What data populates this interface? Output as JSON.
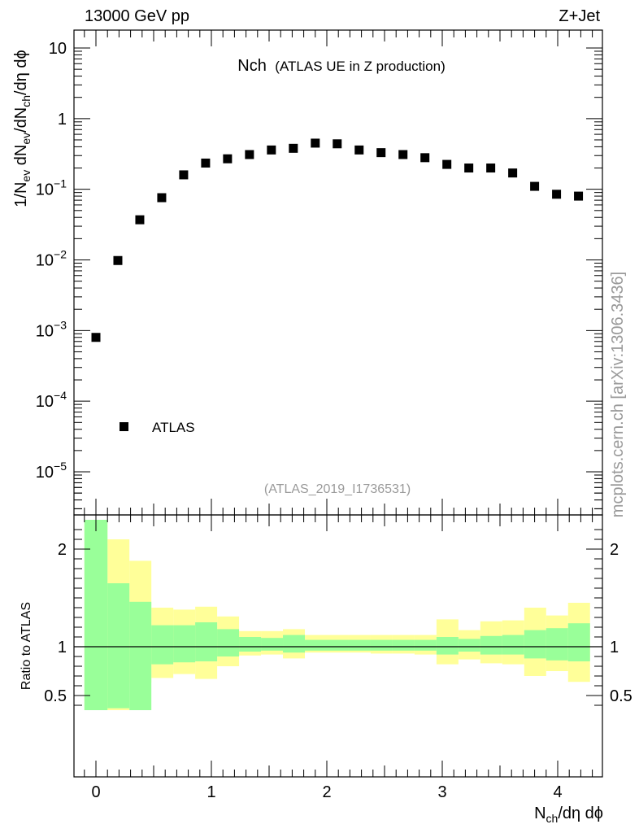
{
  "header": {
    "left": "13000 GeV pp",
    "right": "Z+Jet"
  },
  "side_text": "mcplots.cern.ch [arXiv:1306.3436]",
  "chart_data": [
    {
      "type": "scatter",
      "title_main": "Nch",
      "title_sub": "(ATLAS UE in Z production)",
      "analysis_id": "(ATLAS_2019_I1736531)",
      "ylabel": "1/N_ev dN_ev/dN_ch/dη dϕ",
      "yscale": "log",
      "ylim": [
        3e-06,
        20
      ],
      "xlim": [
        -0.2,
        4.38
      ],
      "ytick_labels": [
        "10",
        "1",
        "10−1",
        "10−2",
        "10−3",
        "10−4",
        "10−5"
      ],
      "legend": {
        "label": "ATLAS",
        "placement": "bottom-left"
      },
      "series": [
        {
          "name": "ATLAS",
          "marker": "square",
          "color": "#000000",
          "x": [
            0.0,
            0.19,
            0.38,
            0.57,
            0.76,
            0.95,
            1.14,
            1.33,
            1.52,
            1.71,
            1.9,
            2.09,
            2.28,
            2.47,
            2.66,
            2.85,
            3.04,
            3.23,
            3.42,
            3.61,
            3.8,
            3.99,
            4.18
          ],
          "y": [
            0.0008,
            0.0098,
            0.037,
            0.076,
            0.16,
            0.235,
            0.27,
            0.31,
            0.36,
            0.38,
            0.45,
            0.44,
            0.36,
            0.33,
            0.31,
            0.28,
            0.225,
            0.2,
            0.2,
            0.17,
            0.11,
            0.085,
            0.08
          ]
        }
      ]
    },
    {
      "type": "area",
      "ylabel": "Ratio to ATLAS",
      "xlabel": "N_ch/dη dϕ",
      "ylim": [
        0.35,
        2.3
      ],
      "xlim": [
        -0.2,
        4.38
      ],
      "xtick_labels": [
        "0",
        "1",
        "2",
        "3",
        "4"
      ],
      "ytick_labels": [
        "0.5",
        "1",
        "2"
      ],
      "reference_line": 1,
      "bins": [
        -0.1,
        0.1,
        0.29,
        0.48,
        0.67,
        0.86,
        1.05,
        1.24,
        1.43,
        1.62,
        1.81,
        2.0,
        2.19,
        2.38,
        2.57,
        2.76,
        2.95,
        3.14,
        3.33,
        3.52,
        3.71,
        3.9,
        4.09,
        4.28
      ],
      "bands": [
        {
          "name": "stat",
          "color": "#99ff99",
          "lo": [
            0.35,
            0.37,
            0.35,
            0.82,
            0.84,
            0.85,
            0.9,
            0.95,
            0.96,
            0.94,
            0.96,
            0.96,
            0.96,
            0.96,
            0.96,
            0.96,
            0.92,
            0.95,
            0.92,
            0.92,
            0.88,
            0.86,
            0.85
          ],
          "hi": [
            2.3,
            1.65,
            1.46,
            1.22,
            1.22,
            1.25,
            1.18,
            1.1,
            1.09,
            1.12,
            1.07,
            1.07,
            1.07,
            1.07,
            1.07,
            1.07,
            1.1,
            1.08,
            1.11,
            1.12,
            1.17,
            1.19,
            1.24
          ]
        },
        {
          "name": "total",
          "color": "#ffff99",
          "lo": [
            0.35,
            0.35,
            0.63,
            0.68,
            0.72,
            0.67,
            0.8,
            0.91,
            0.92,
            0.88,
            0.94,
            0.94,
            0.94,
            0.93,
            0.93,
            0.92,
            0.82,
            0.87,
            0.83,
            0.82,
            0.7,
            0.75,
            0.64
          ],
          "hi": [
            2.3,
            2.1,
            1.88,
            1.4,
            1.38,
            1.41,
            1.31,
            1.16,
            1.16,
            1.18,
            1.12,
            1.12,
            1.12,
            1.12,
            1.12,
            1.12,
            1.28,
            1.17,
            1.26,
            1.27,
            1.4,
            1.32,
            1.45
          ]
        }
      ]
    }
  ]
}
